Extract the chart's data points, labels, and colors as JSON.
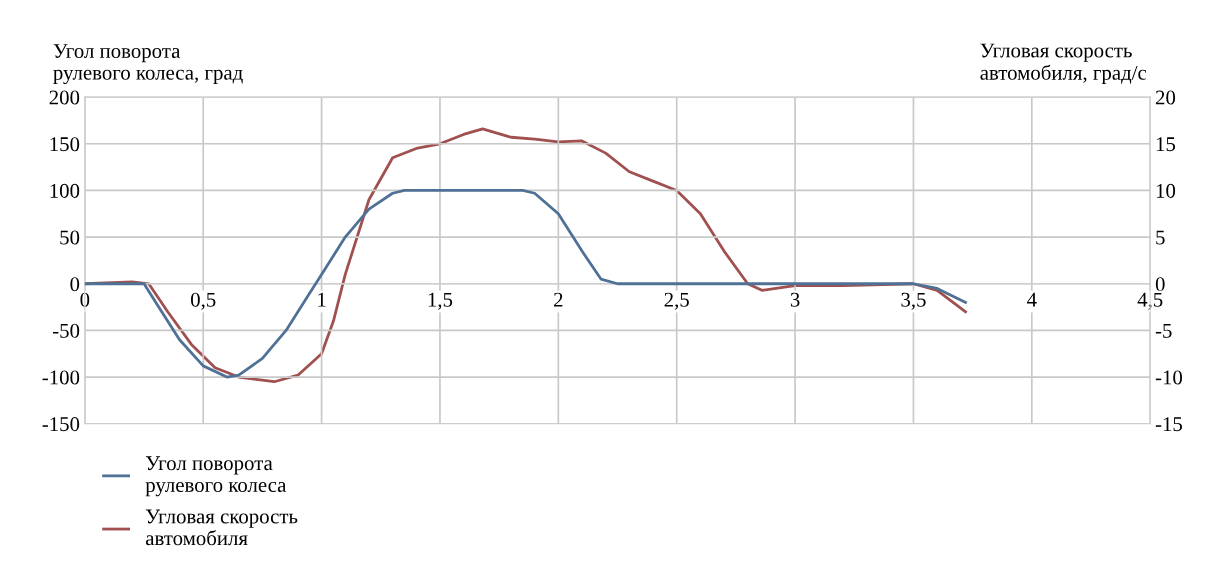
{
  "chart_data": {
    "type": "line",
    "ylabel": "Угол поворота\nрулевого колеса, град",
    "y2label": "Угловая скорость\nавтомобиля, град/с",
    "xlim": [
      0,
      4.5
    ],
    "xticks": [
      0,
      {
        "value": 0.5,
        "label": "0,5"
      },
      1,
      {
        "value": 1.5,
        "label": "1,5"
      },
      2,
      {
        "value": 2.5,
        "label": "2,5"
      },
      3,
      {
        "value": 3.5,
        "label": "3,5"
      },
      4,
      {
        "value": 4.5,
        "label": "4,5"
      }
    ],
    "ylim": [
      -150,
      200
    ],
    "yticks": [
      -150,
      -100,
      -50,
      0,
      50,
      100,
      150,
      200
    ],
    "y2lim": [
      -15,
      20
    ],
    "y2ticks": [
      -15,
      -10,
      -5,
      0,
      5,
      10,
      15,
      20
    ],
    "grid": true,
    "legend": "bottom left",
    "marker": "none",
    "line_style": "solid",
    "series": [
      {
        "name": "Угол поворота\nрулевого колеса",
        "color": "#4f7196",
        "x": [
          0,
          0.2,
          0.25,
          0.3,
          0.4,
          0.5,
          0.6,
          0.65,
          0.75,
          0.85,
          0.95,
          1.0,
          1.1,
          1.2,
          1.3,
          1.35,
          1.85,
          1.9,
          2.0,
          2.1,
          2.18,
          2.25,
          3.5,
          3.6,
          3.72
        ],
        "values": [
          0,
          0,
          0,
          -20,
          -60,
          -88,
          -100,
          -98,
          -80,
          -50,
          -10,
          10,
          50,
          80,
          97,
          100,
          100,
          97,
          75,
          35,
          5,
          0,
          0,
          -5,
          -20
        ]
      },
      {
        "name": "Угловая скорость\nавтомобиля",
        "color": "#a0504f",
        "axis": "y2",
        "x": [
          0,
          0.2,
          0.27,
          0.35,
          0.45,
          0.55,
          0.65,
          0.8,
          0.9,
          1.0,
          1.05,
          1.1,
          1.2,
          1.3,
          1.4,
          1.5,
          1.6,
          1.68,
          1.8,
          1.9,
          2.0,
          2.1,
          2.2,
          2.3,
          2.4,
          2.5,
          2.6,
          2.7,
          2.8,
          2.86,
          3.0,
          3.2,
          3.5,
          3.6,
          3.72
        ],
        "values": [
          0,
          0.2,
          0,
          -3,
          -6.5,
          -9,
          -10,
          -10.5,
          -9.8,
          -7.5,
          -4,
          1,
          9,
          13.5,
          14.5,
          15,
          16,
          16.6,
          15.7,
          15.5,
          15.2,
          15.3,
          14,
          12,
          11,
          10,
          7.5,
          3.5,
          0,
          -0.7,
          -0.2,
          -0.2,
          0,
          -0.7,
          -3
        ]
      }
    ]
  }
}
